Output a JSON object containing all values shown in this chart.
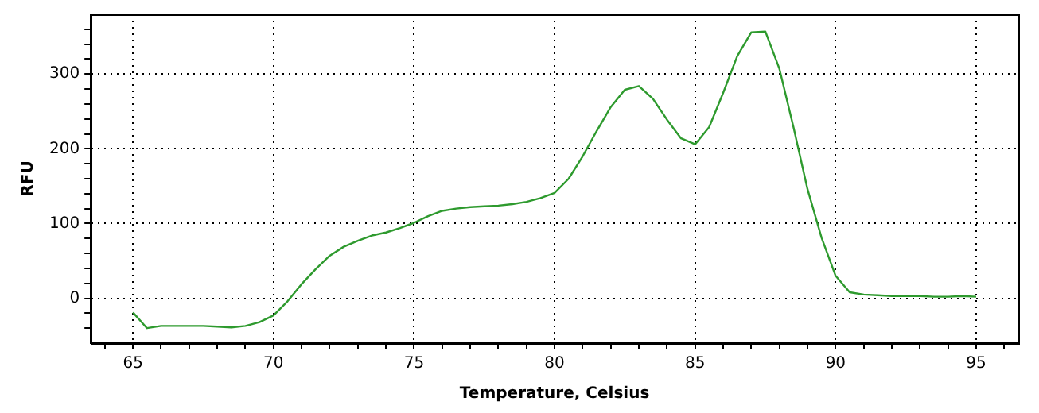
{
  "chart_data": {
    "type": "line",
    "xlabel": "Temperature, Celsius",
    "ylabel": "RFU",
    "x": [
      65,
      65.5,
      66,
      66.5,
      67,
      67.5,
      68,
      68.5,
      69,
      69.5,
      70,
      70.5,
      71,
      71.5,
      72,
      72.5,
      73,
      73.5,
      74,
      74.5,
      75,
      75.5,
      76,
      76.5,
      77,
      77.5,
      78,
      78.5,
      79,
      79.5,
      80,
      80.5,
      81,
      81.5,
      82,
      82.5,
      83,
      83.5,
      84,
      84.5,
      85,
      85.5,
      86,
      86.5,
      87,
      87.5,
      88,
      88.5,
      89,
      89.5,
      90,
      90.5,
      91,
      91.5,
      92,
      92.5,
      93,
      93.5,
      94,
      94.5,
      95
    ],
    "series": [
      {
        "color": "#2e9a2e",
        "values": [
          -19,
          -40,
          -37,
          -37,
          -37,
          -37,
          -38,
          -39,
          -37,
          -32,
          -23,
          -4,
          19,
          39,
          57,
          69,
          77,
          84,
          88,
          94,
          101,
          110,
          117,
          120,
          122,
          123,
          124,
          126,
          129,
          134,
          141,
          160,
          190,
          224,
          256,
          279,
          284,
          267,
          239,
          214,
          206,
          229,
          275,
          324,
          356,
          357,
          307,
          229,
          146,
          81,
          30,
          8,
          5,
          4,
          3,
          3,
          3,
          2,
          2,
          3,
          2
        ]
      }
    ],
    "xlim": [
      63.5,
      96.5
    ],
    "xticks": [
      {
        "value": 64,
        "label": null
      },
      65,
      {
        "value": 66,
        "label": null
      },
      {
        "value": 67,
        "label": null
      },
      {
        "value": 68,
        "label": null
      },
      {
        "value": 69,
        "label": null
      },
      70,
      {
        "value": 71,
        "label": null
      },
      {
        "value": 72,
        "label": null
      },
      {
        "value": 73,
        "label": null
      },
      {
        "value": 74,
        "label": null
      },
      75,
      {
        "value": 76,
        "label": null
      },
      {
        "value": 77,
        "label": null
      },
      {
        "value": 78,
        "label": null
      },
      {
        "value": 79,
        "label": null
      },
      80,
      {
        "value": 81,
        "label": null
      },
      {
        "value": 82,
        "label": null
      },
      {
        "value": 83,
        "label": null
      },
      {
        "value": 84,
        "label": null
      },
      85,
      {
        "value": 86,
        "label": null
      },
      {
        "value": 87,
        "label": null
      },
      {
        "value": 88,
        "label": null
      },
      {
        "value": 89,
        "label": null
      },
      90,
      {
        "value": 91,
        "label": null
      },
      {
        "value": 92,
        "label": null
      },
      {
        "value": 93,
        "label": null
      },
      {
        "value": 94,
        "label": null
      },
      95,
      {
        "value": 96,
        "label": null
      }
    ],
    "ylim": [
      -60,
      380
    ],
    "yticks": [
      {
        "value": -40,
        "label": null
      },
      {
        "value": -20,
        "label": null
      },
      0,
      {
        "value": 20,
        "label": null
      },
      {
        "value": 40,
        "label": null
      },
      {
        "value": 60,
        "label": null
      },
      {
        "value": 80,
        "label": null
      },
      100,
      {
        "value": 120,
        "label": null
      },
      {
        "value": 140,
        "label": null
      },
      {
        "value": 160,
        "label": null
      },
      {
        "value": 180,
        "label": null
      },
      200,
      {
        "value": 220,
        "label": null
      },
      {
        "value": 240,
        "label": null
      },
      {
        "value": 260,
        "label": null
      },
      {
        "value": 280,
        "label": null
      },
      300,
      {
        "value": 320,
        "label": null
      },
      {
        "value": 340,
        "label": null
      },
      {
        "value": 360,
        "label": null
      }
    ],
    "grid": true,
    "legend": false,
    "marker": "none",
    "line_style": "solid"
  }
}
